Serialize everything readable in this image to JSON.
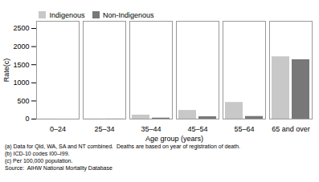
{
  "chart_data": {
    "type": "bar",
    "categories": [
      "0–24",
      "25–34",
      "35–44",
      "45–54",
      "55–64",
      "65 and over"
    ],
    "series": [
      {
        "name": "Indigenous",
        "color": "#c8c8c8",
        "values": [
          3,
          5,
          110,
          240,
          460,
          1720
        ]
      },
      {
        "name": "Non-Indigenous",
        "color": "#787878",
        "values": [
          0,
          3,
          28,
          65,
          72,
          1640
        ]
      }
    ],
    "xlabel": "Age group (years)",
    "ylabel": "Rate(c)",
    "ylim": [
      0,
      2700
    ],
    "yticks": [
      0,
      500,
      1000,
      1500,
      2000,
      2500
    ],
    "legend": "top",
    "annotations": [
      "(a) Data for Qld, WA, SA and NT combined.  Deaths are based on year of registration of death.",
      "(b) ICD-10 codes I00–I99.",
      "(c) Per 100,000 population.",
      "Source:  AIHW National Mortality Database"
    ]
  }
}
